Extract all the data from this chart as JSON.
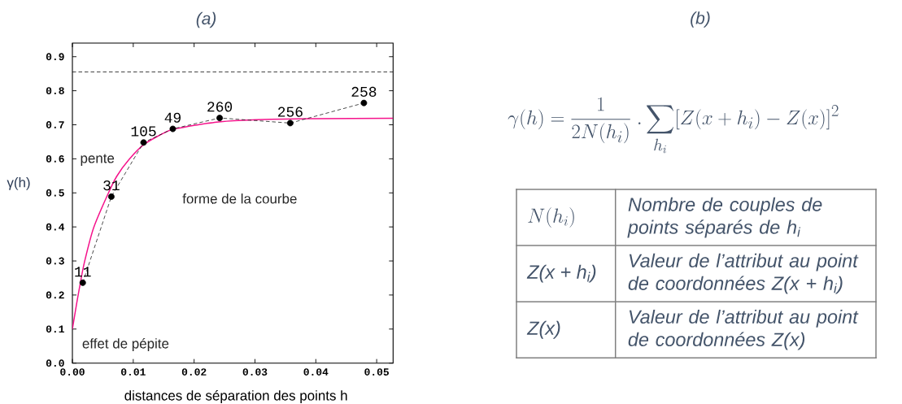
{
  "chart_data": [
    {
      "type": "line",
      "title": "(a)",
      "xlabel": "distances de séparation des points h",
      "ylabel": "γ(h)",
      "xlim": [
        0,
        0.0527
      ],
      "ylim": [
        0,
        0.94
      ],
      "xticks": [
        {
          "value": 0,
          "label": "0.00"
        },
        0.01,
        0.02,
        0.03,
        0.04,
        0.05
      ],
      "yticks": [
        {
          "value": 0,
          "label": "0.0"
        },
        0.1,
        0.2,
        0.3,
        0.4,
        0.5,
        0.6,
        0.7,
        0.8,
        0.9
      ],
      "series": [
        {
          "color": "#f5138b",
          "marker": "none",
          "line_style": "solid",
          "x": [
            0,
            0.0007,
            0.0013,
            0.002,
            0.0035,
            0.0059,
            0.0073,
            0.0093,
            0.0119,
            0.0159,
            0.0182,
            0.02,
            0.0237,
            0.028,
            0.0326,
            0.04,
            0.0527
          ],
          "values": [
            0.1,
            0.175,
            0.235,
            0.298,
            0.398,
            0.499,
            0.549,
            0.598,
            0.644,
            0.683,
            0.692,
            0.698,
            0.708,
            0.713,
            0.716,
            0.718,
            0.719
          ]
        },
        {
          "color": "#000000",
          "marker": "circle",
          "line_style": "dashed",
          "x": [
            0.0017,
            0.0064,
            0.0117,
            0.0165,
            0.0242,
            0.0358,
            0.0479
          ],
          "values": [
            0.236,
            0.489,
            0.648,
            0.688,
            0.72,
            0.705,
            0.764
          ]
        }
      ],
      "ref_lines": [
        {
          "axis": "y",
          "value": 0.855,
          "color": "#000000",
          "line_style": "dashed"
        }
      ],
      "annotations": [
        {
          "text": "11",
          "x": 0.0017,
          "y": 0.236
        },
        {
          "text": "31",
          "x": 0.0064,
          "y": 0.489
        },
        {
          "text": "105",
          "x": 0.0117,
          "y": 0.648
        },
        {
          "text": "49",
          "x": 0.0165,
          "y": 0.688
        },
        {
          "text": "260",
          "x": 0.0242,
          "y": 0.72
        },
        {
          "text": "256",
          "x": 0.0358,
          "y": 0.705
        },
        {
          "text": "258",
          "x": 0.0479,
          "y": 0.764
        },
        "pente",
        "forme de la courbe",
        "effet de pépite"
      ]
    },
    {
      "type": "other",
      "title": "(b)",
      "annotations": [
        "\\gamma(h) = \\frac{1}{2N(h_i)}\\;.\\sum_{h_i}[Z(x+h_i)-Z(x)]^2",
        "N(h_i)",
        "Nombre de couples de points séparés de h$_{i}$",
        "Z(x + h$_{i}$)",
        "Valeur de l’attribut au point de coordonnées Z(x + h$_{i}$)",
        "Z(x)",
        "Valeur de l’attribut au point de coordonnées Z(x)"
      ]
    }
  ]
}
